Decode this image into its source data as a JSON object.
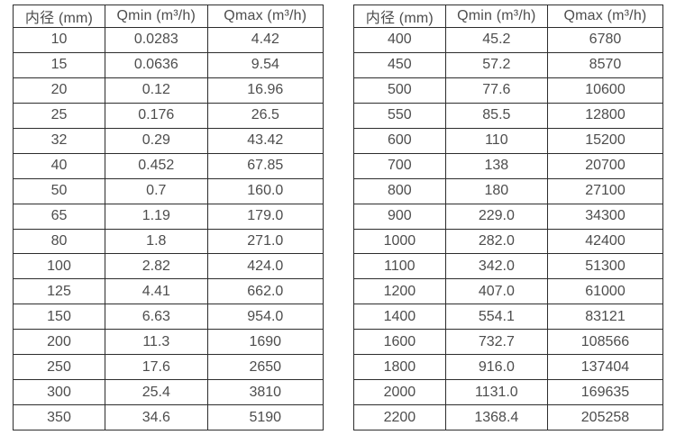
{
  "colors": {
    "border": "#2d2d2d",
    "text": "#4d4d4d",
    "background": "#ffffff"
  },
  "chart_data": [
    {
      "type": "table",
      "name": "flow-table-small-diameters",
      "columns": [
        "内径 (mm)",
        "Qmin (m³/h)",
        "Qmax (m³/h)"
      ],
      "rows": [
        [
          "10",
          "0.0283",
          "4.42"
        ],
        [
          "15",
          "0.0636",
          "9.54"
        ],
        [
          "20",
          "0.12",
          "16.96"
        ],
        [
          "25",
          "0.176",
          "26.5"
        ],
        [
          "32",
          "0.29",
          "43.42"
        ],
        [
          "40",
          "0.452",
          "67.85"
        ],
        [
          "50",
          "0.7",
          "160.0"
        ],
        [
          "65",
          "1.19",
          "179.0"
        ],
        [
          "80",
          "1.8",
          "271.0"
        ],
        [
          "100",
          "2.82",
          "424.0"
        ],
        [
          "125",
          "4.41",
          "662.0"
        ],
        [
          "150",
          "6.63",
          "954.0"
        ],
        [
          "200",
          "11.3",
          "1690"
        ],
        [
          "250",
          "17.6",
          "2650"
        ],
        [
          "300",
          "25.4",
          "3810"
        ],
        [
          "350",
          "34.6",
          "5190"
        ]
      ]
    },
    {
      "type": "table",
      "name": "flow-table-large-diameters",
      "columns": [
        "内径 (mm)",
        "Qmin (m³/h)",
        "Qmax (m³/h)"
      ],
      "rows": [
        [
          "400",
          "45.2",
          "6780"
        ],
        [
          "450",
          "57.2",
          "8570"
        ],
        [
          "500",
          "77.6",
          "10600"
        ],
        [
          "550",
          "85.5",
          "12800"
        ],
        [
          "600",
          "110",
          "15200"
        ],
        [
          "700",
          "138",
          "20700"
        ],
        [
          "800",
          "180",
          "27100"
        ],
        [
          "900",
          "229.0",
          "34300"
        ],
        [
          "1000",
          "282.0",
          "42400"
        ],
        [
          "1100",
          "342.0",
          "51300"
        ],
        [
          "1200",
          "407.0",
          "61000"
        ],
        [
          "1400",
          "554.1",
          "83121"
        ],
        [
          "1600",
          "732.7",
          "108566"
        ],
        [
          "1800",
          "916.0",
          "137404"
        ],
        [
          "2000",
          "1131.0",
          "169635"
        ],
        [
          "2200",
          "1368.4",
          "205258"
        ]
      ]
    }
  ]
}
